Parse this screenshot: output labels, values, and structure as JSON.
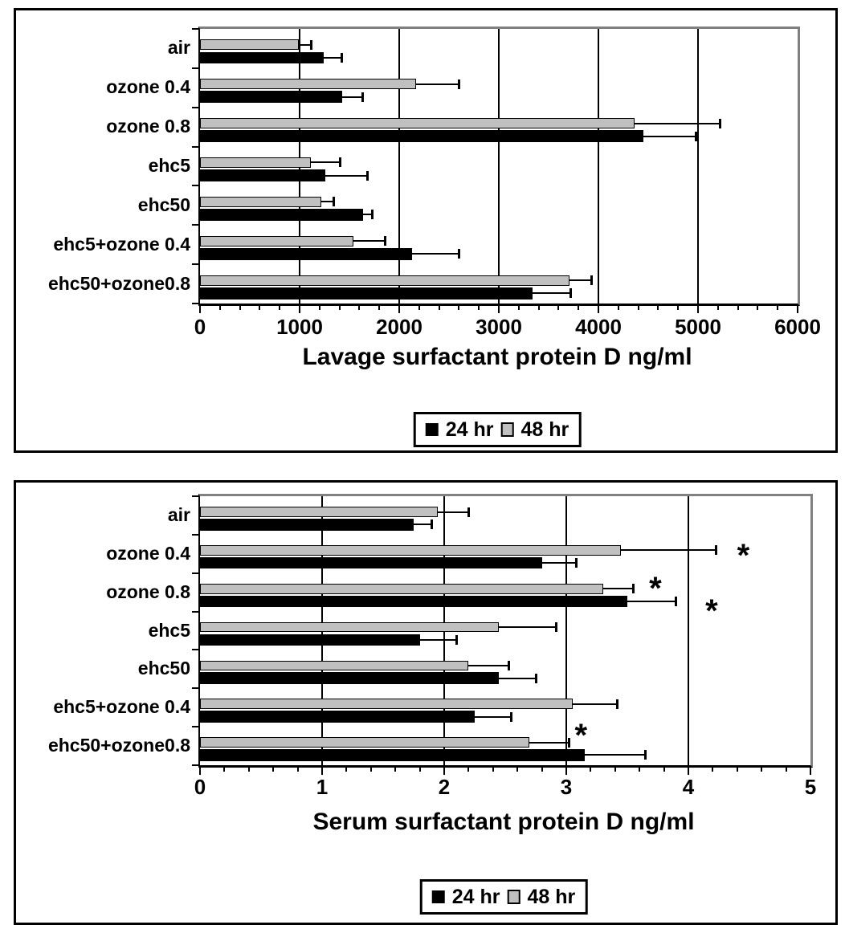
{
  "page": {
    "background": "#FFFFFF",
    "colors": {
      "bar_24hr": "#000000",
      "bar_48hr": "#C0C0C0",
      "plot_edge": "#808080",
      "grid": "#000000"
    }
  },
  "chart_data": [
    {
      "type": "bar",
      "orientation": "horizontal",
      "title": "Lavage surfactant protein D ng/ml",
      "categories": [
        "air",
        "ozone 0.4",
        "ozone 0.8",
        "ehc5",
        "ehc50",
        "ehc5+ozone 0.4",
        "ehc50+ozone0.8"
      ],
      "series": [
        {
          "name": "24 hr",
          "color": "#000000",
          "values": [
            1240,
            1430,
            4450,
            1260,
            1640,
            2130,
            3340
          ],
          "errors_plus": [
            185,
            200,
            530,
            420,
            90,
            470,
            385
          ]
        },
        {
          "name": "48 hr",
          "color": "#C0C0C0",
          "values": [
            990,
            2170,
            4360,
            1110,
            1215,
            1540,
            3710
          ],
          "errors_plus": [
            125,
            430,
            865,
            300,
            130,
            315,
            220
          ]
        }
      ],
      "xlim": [
        0,
        6000
      ],
      "x_major_tick": 1000,
      "x_minor_tick": 200,
      "x_tick_labels": [
        "0",
        "1000",
        "2000",
        "3000",
        "4000",
        "5000",
        "6000"
      ],
      "grid": "vertical-major",
      "legend_position": "below",
      "legend": [
        "24 hr",
        "48 hr"
      ],
      "annotations": []
    },
    {
      "type": "bar",
      "orientation": "horizontal",
      "title": "Serum surfactant protein D ng/ml",
      "categories": [
        "air",
        "ozone 0.4",
        "ozone 0.8",
        "ehc5",
        "ehc50",
        "ehc5+ozone 0.4",
        "ehc50+ozone0.8"
      ],
      "series": [
        {
          "name": "24 hr",
          "color": "#000000",
          "values": [
            1.75,
            2.8,
            3.5,
            1.8,
            2.45,
            2.25,
            3.15
          ],
          "errors_plus": [
            0.15,
            0.28,
            0.4,
            0.3,
            0.3,
            0.3,
            0.5
          ]
        },
        {
          "name": "48 hr",
          "color": "#C0C0C0",
          "values": [
            1.95,
            3.45,
            3.3,
            2.45,
            2.2,
            3.05,
            2.7
          ],
          "errors_plus": [
            0.25,
            0.78,
            0.25,
            0.47,
            0.33,
            0.37,
            0.32
          ]
        }
      ],
      "xlim": [
        0,
        5
      ],
      "x_major_tick": 1,
      "x_minor_tick": 0.2,
      "x_tick_labels": [
        "0",
        "1",
        "2",
        "3",
        "4",
        "5"
      ],
      "grid": "vertical-major",
      "legend_position": "below",
      "legend": [
        "24 hr",
        "48 hr"
      ],
      "annotations": [
        {
          "symbol": "*",
          "category": "ozone 0.4",
          "x": 4.45,
          "row_frac": 0.44
        },
        {
          "symbol": "*",
          "category": "ozone 0.8",
          "x": 3.73,
          "row_frac": 0.3
        },
        {
          "symbol": "*",
          "category": "ozone 0.8",
          "x": 4.19,
          "row_frac": 0.88
        },
        {
          "symbol": "*",
          "category": "ehc50+ozone0.8",
          "x": 3.12,
          "row_frac": 0.12
        }
      ]
    }
  ]
}
